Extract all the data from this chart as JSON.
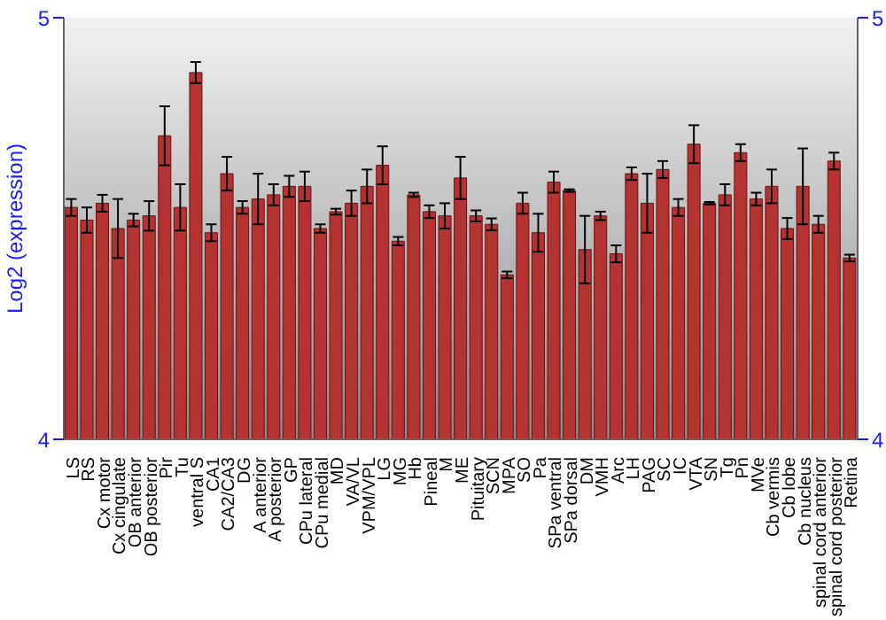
{
  "chart_data": {
    "type": "bar",
    "ylabel": "Log2 (expression)",
    "categories": [
      "LS",
      "RS",
      "Cx motor",
      "Cx cingulate",
      "OB anterior",
      "OB posterior",
      "Pir",
      "Tu",
      "ventral S",
      "CA1",
      "CA2/CA3",
      "DG",
      "A anterior",
      "A posterior",
      "GP",
      "CPu lateral",
      "CPu medial",
      "MD",
      "VA/VL",
      "VPM/VPL",
      "LG",
      "MG",
      "Hb",
      "Pineal",
      "M",
      "ME",
      "Pituitary",
      "SCN",
      "MPA",
      "SO",
      "Pa",
      "SPa ventral",
      "SPa dorsal",
      "DM",
      "VMH",
      "Arc",
      "LH",
      "PAG",
      "SC",
      "IC",
      "VTA",
      "SN",
      "Tg",
      "Pn",
      "MVe",
      "Cb vermis",
      "Cb lobe",
      "Cb nucleus",
      "spinal cord anterior",
      "spinal cord posterior",
      "Retina"
    ],
    "values": [
      4.55,
      4.52,
      4.56,
      4.5,
      4.52,
      4.53,
      4.72,
      4.55,
      4.87,
      4.49,
      4.63,
      4.55,
      4.57,
      4.58,
      4.6,
      4.6,
      4.5,
      4.54,
      4.56,
      4.6,
      4.65,
      4.47,
      4.58,
      4.54,
      4.53,
      4.62,
      4.53,
      4.51,
      4.39,
      4.56,
      4.49,
      4.61,
      4.59,
      4.45,
      4.53,
      4.44,
      4.63,
      4.56,
      4.64,
      4.55,
      4.7,
      4.56,
      4.58,
      4.68,
      4.57,
      4.6,
      4.5,
      4.6,
      4.51,
      4.66,
      4.43
    ],
    "errors": [
      0.02,
      0.03,
      0.02,
      0.07,
      0.015,
      0.035,
      0.07,
      0.055,
      0.025,
      0.02,
      0.04,
      0.015,
      0.06,
      0.025,
      0.025,
      0.035,
      0.01,
      0.007,
      0.03,
      0.04,
      0.045,
      0.01,
      0.005,
      0.015,
      0.03,
      0.05,
      0.013,
      0.014,
      0.008,
      0.025,
      0.045,
      0.025,
      0.003,
      0.08,
      0.01,
      0.02,
      0.015,
      0.07,
      0.02,
      0.02,
      0.045,
      0.003,
      0.025,
      0.02,
      0.015,
      0.04,
      0.025,
      0.09,
      0.02,
      0.02,
      0.008
    ],
    "color": "#b33232",
    "ylim": [
      4,
      5
    ],
    "yticks": [
      4,
      5
    ],
    "y2lim": [
      4,
      5
    ],
    "y2ticks": [
      4,
      5
    ],
    "grid": false
  }
}
